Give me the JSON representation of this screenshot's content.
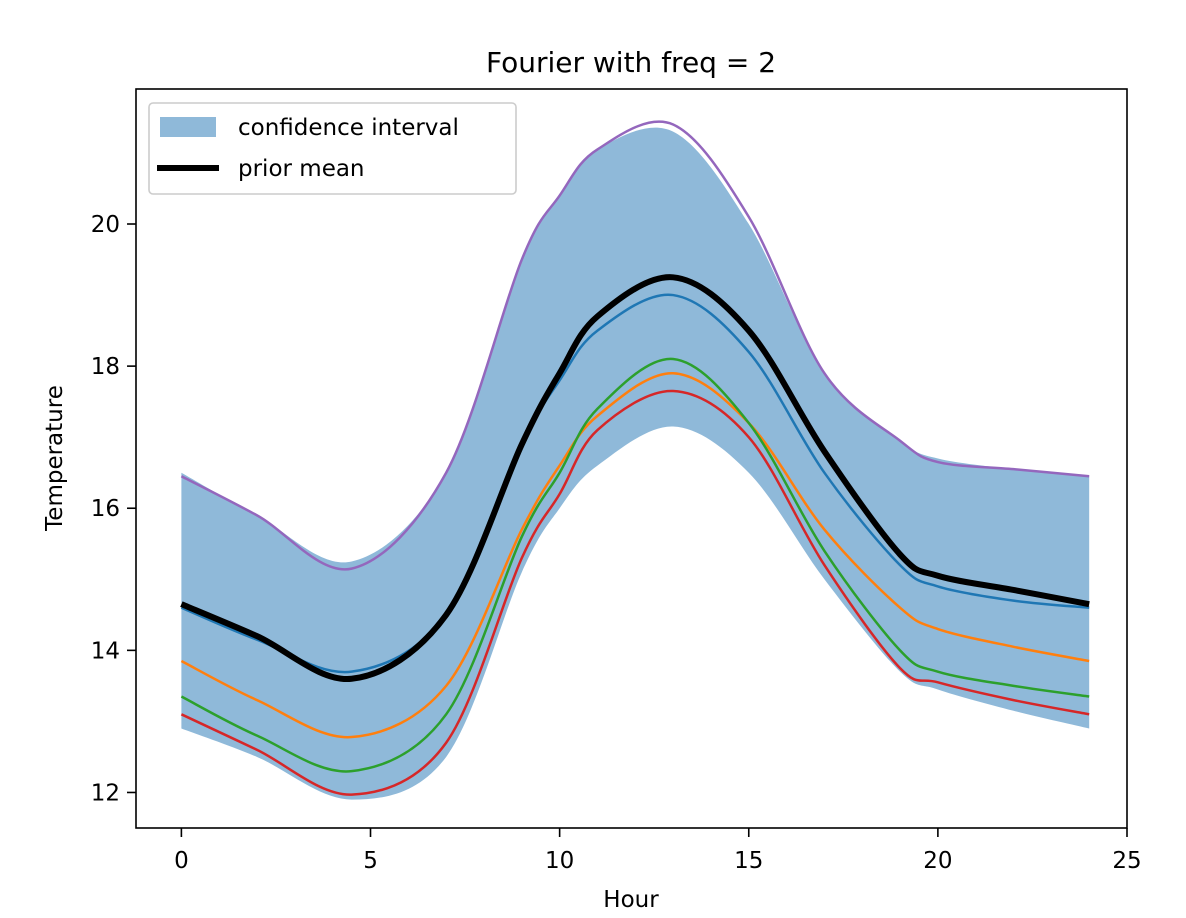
{
  "chart_data": {
    "type": "line",
    "title": "Fourier with freq = 2",
    "xlabel": "Hour",
    "ylabel": "Temperature",
    "xlim": [
      -1.2,
      25.0
    ],
    "ylim": [
      11.5,
      21.9
    ],
    "xticks": [
      0,
      5,
      10,
      15,
      20,
      25
    ],
    "yticks": [
      12,
      14,
      16,
      18,
      20
    ],
    "grid": false,
    "legend": {
      "position": "top-left",
      "entries": [
        {
          "label": "confidence interval",
          "kind": "patch",
          "color": "#8fb9d9"
        },
        {
          "label": "prior mean",
          "kind": "line",
          "color": "#000000"
        }
      ]
    },
    "x": [
      0,
      2,
      4.5,
      7,
      9,
      10,
      11,
      13,
      15,
      17,
      19,
      20,
      22,
      24
    ],
    "band": {
      "name": "confidence interval",
      "color": "#8fb9d9",
      "lower": [
        12.9,
        12.5,
        11.9,
        12.5,
        15.1,
        16.0,
        16.6,
        17.15,
        16.5,
        15.0,
        13.7,
        13.45,
        13.15,
        12.9
      ],
      "upper": [
        16.5,
        15.9,
        15.25,
        16.5,
        19.5,
        20.4,
        21.05,
        21.3,
        20.0,
        17.9,
        16.95,
        16.7,
        16.55,
        16.45
      ]
    },
    "series": [
      {
        "color": "#9467bd",
        "width": 2.5,
        "values": [
          16.45,
          15.9,
          15.15,
          16.5,
          19.5,
          20.4,
          21.05,
          21.4,
          20.1,
          17.9,
          16.95,
          16.65,
          16.55,
          16.45
        ]
      },
      {
        "color": "#1f77b4",
        "width": 2.5,
        "values": [
          14.6,
          14.15,
          13.7,
          14.5,
          16.9,
          17.8,
          18.5,
          19.0,
          18.2,
          16.5,
          15.2,
          14.9,
          14.7,
          14.6
        ]
      },
      {
        "color": "#ff7f0e",
        "width": 2.5,
        "values": [
          13.85,
          13.3,
          12.78,
          13.5,
          15.7,
          16.6,
          17.3,
          17.9,
          17.2,
          15.7,
          14.6,
          14.3,
          14.05,
          13.85
        ]
      },
      {
        "color": "#2ca02c",
        "width": 2.5,
        "values": [
          13.35,
          12.8,
          12.3,
          13.1,
          15.6,
          16.5,
          17.4,
          18.1,
          17.2,
          15.4,
          14.0,
          13.7,
          13.5,
          13.35
        ]
      },
      {
        "color": "#d62728",
        "width": 2.5,
        "values": [
          13.1,
          12.6,
          11.97,
          12.7,
          15.3,
          16.2,
          17.1,
          17.65,
          17.0,
          15.2,
          13.75,
          13.55,
          13.3,
          13.1
        ]
      },
      {
        "name": "prior mean",
        "color": "#000000",
        "width": 6,
        "values": [
          14.65,
          14.2,
          13.6,
          14.5,
          16.9,
          17.9,
          18.7,
          19.25,
          18.5,
          16.8,
          15.35,
          15.05,
          14.85,
          14.65
        ]
      }
    ]
  }
}
